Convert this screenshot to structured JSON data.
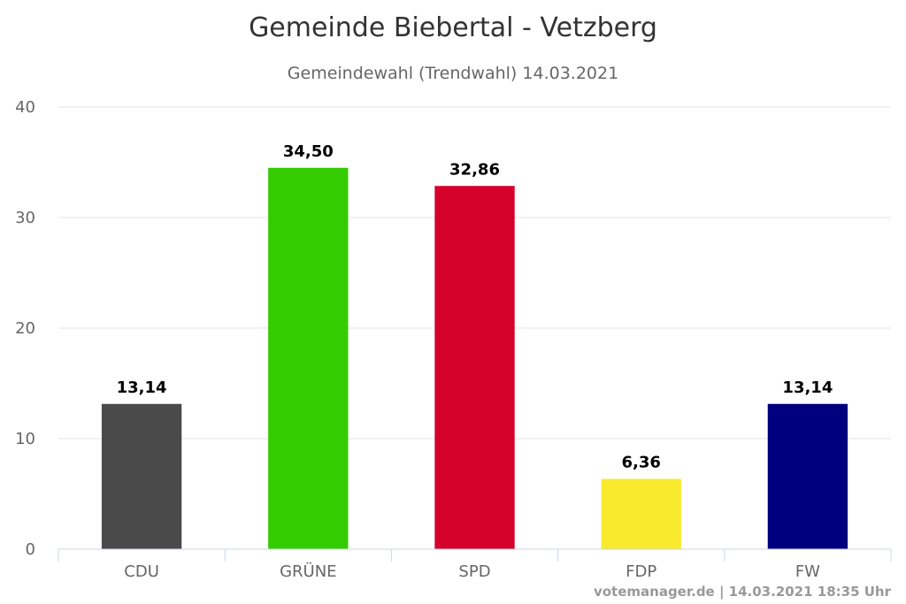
{
  "chart_data": {
    "type": "bar",
    "title": "Gemeinde Biebertal - Vetzberg",
    "subtitle": "Gemeindewahl (Trendwahl) 14.03.2021",
    "categories": [
      "CDU",
      "GRÜNE",
      "SPD",
      "FDP",
      "FW"
    ],
    "values": [
      13.14,
      34.5,
      32.86,
      6.36,
      13.14
    ],
    "data_labels": [
      "13,14",
      "34,50",
      "32,86",
      "6,36",
      "13,14"
    ],
    "colors": [
      "#4a4a4a",
      "#33cc00",
      "#d5002b",
      "#f9ea2e",
      "#00007f"
    ],
    "xlabel": "",
    "ylabel": "",
    "ylim": [
      0,
      40
    ],
    "yticks": [
      0,
      10,
      20,
      30,
      40
    ],
    "grid": true,
    "legend": "none"
  },
  "credits": "votemanager.de | 14.03.2021 18:35 Uhr"
}
